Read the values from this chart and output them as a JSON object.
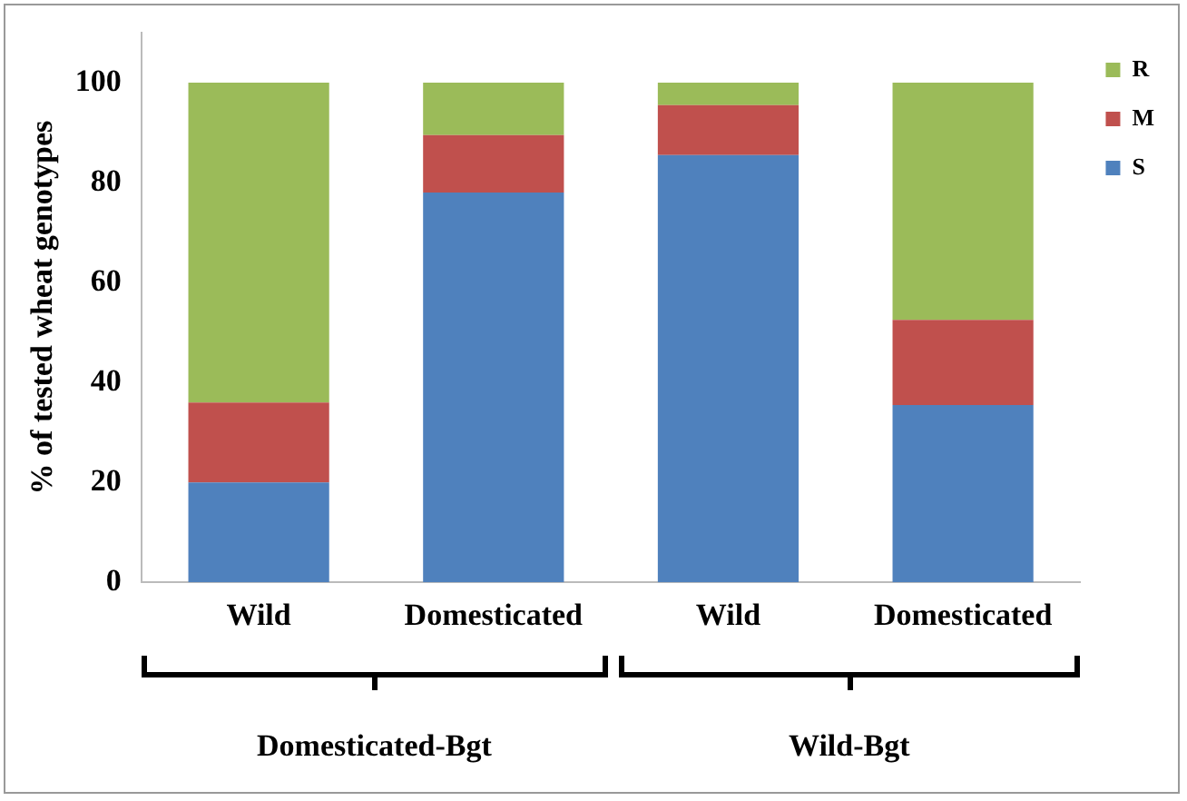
{
  "chart_data": {
    "type": "bar",
    "stacked": true,
    "ylabel": "% of tested wheat genotypes",
    "categories": [
      "Wild",
      "Domesticated",
      "Wild",
      "Domesticated"
    ],
    "series": [
      {
        "name": "S",
        "color": "#4f81bd",
        "values": [
          20,
          78,
          85.5,
          35.5
        ]
      },
      {
        "name": "M",
        "color": "#c0504d",
        "values": [
          16,
          11.5,
          10,
          17
        ]
      },
      {
        "name": "R",
        "color": "#9bbb59",
        "values": [
          64,
          10.5,
          4.5,
          47.5
        ]
      }
    ],
    "ylim": [
      0,
      110
    ],
    "yticks": [
      0,
      20,
      40,
      60,
      80,
      100
    ],
    "grid": false,
    "legend": "top right",
    "annotations": [
      "Domesticated-Bgt",
      "Wild-Bgt"
    ]
  }
}
